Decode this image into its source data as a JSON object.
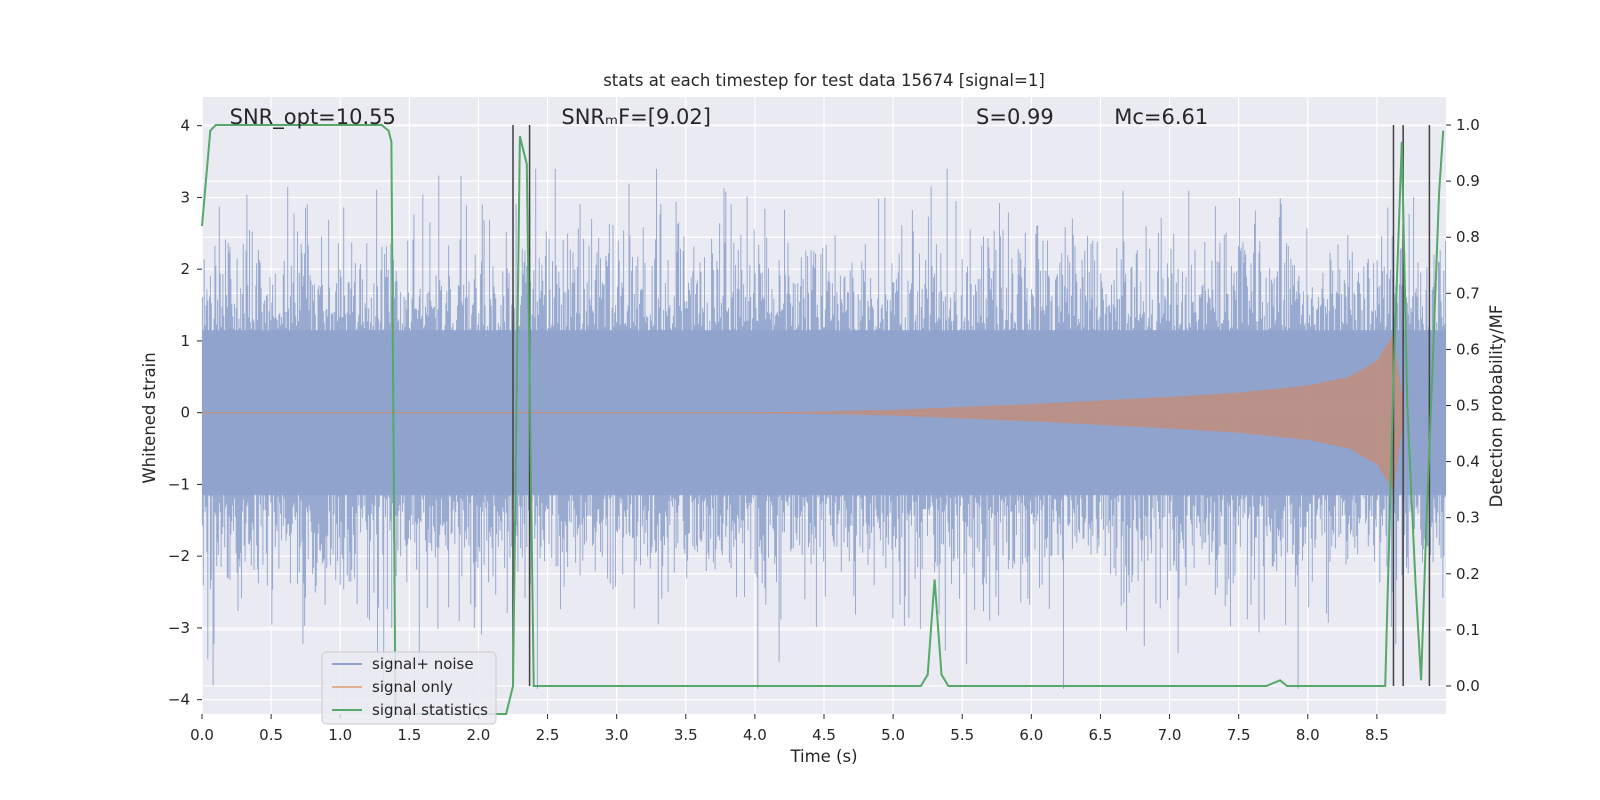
{
  "chart_data": {
    "type": "line",
    "title": "stats at each timestep for test data 15674 [signal=1]",
    "xlabel": "Time (s)",
    "ylabel_left": "Whitened strain",
    "ylabel_right": "Detection probability/MF",
    "xlim": [
      0.0,
      9.0
    ],
    "ylim_left": [
      -4.2,
      4.4
    ],
    "ylim_right": [
      -0.05,
      1.05
    ],
    "x_ticks": [
      "0.0",
      "0.5",
      "1.0",
      "1.5",
      "2.0",
      "2.5",
      "3.0",
      "3.5",
      "4.0",
      "4.5",
      "5.0",
      "5.5",
      "6.0",
      "6.5",
      "7.0",
      "7.5",
      "8.0",
      "8.5"
    ],
    "y_left_ticks": [
      "4",
      "3",
      "2",
      "1",
      "0",
      "−1",
      "−2",
      "−3",
      "−4"
    ],
    "y_right_ticks": [
      "1.0",
      "0.9",
      "0.8",
      "0.7",
      "0.6",
      "0.5",
      "0.4",
      "0.3",
      "0.2",
      "0.1",
      "0.0"
    ],
    "annotations": [
      {
        "text": "SNR_opt=10.55",
        "x": 0.2
      },
      {
        "text": "SNRₘF=[9.02]",
        "x": 2.6
      },
      {
        "text": "S=0.99",
        "x": 5.6
      },
      {
        "text": "Mᴄ=6.61",
        "x": 6.6
      }
    ],
    "legend": {
      "placement": "lower-left",
      "entries": [
        "signal+ noise",
        "signal only",
        "signal statistics"
      ]
    },
    "colors": {
      "noise": "#8fa3cc",
      "signal": "#dd8452",
      "stats": "#55a868",
      "vlines": "#404040",
      "background": "#eaeaf2",
      "grid": "#ffffff"
    },
    "grid": true,
    "series": [
      {
        "name": "signal statistics",
        "axis": "right",
        "x": [
          0.0,
          0.06,
          0.1,
          0.2,
          0.5,
          1.0,
          1.3,
          1.35,
          1.37,
          1.4,
          1.45,
          1.5,
          1.6,
          2.0,
          2.2,
          2.25,
          2.3,
          2.35,
          2.4,
          2.45,
          2.6,
          3.0,
          4.0,
          5.0,
          5.2,
          5.25,
          5.3,
          5.35,
          5.4,
          6.0,
          7.0,
          7.7,
          7.8,
          7.85,
          7.9,
          8.0,
          8.56,
          8.62,
          8.68,
          8.72,
          8.78,
          8.82,
          8.86,
          8.9,
          8.95,
          8.98
        ],
        "y": [
          0.82,
          0.99,
          1.0,
          1.0,
          1.0,
          1.0,
          1.0,
          0.99,
          0.97,
          -0.05,
          -0.05,
          -0.05,
          -0.05,
          -0.05,
          -0.05,
          0.0,
          0.98,
          0.93,
          0.0,
          0.0,
          0.0,
          0.0,
          0.0,
          0.0,
          0.0,
          0.02,
          0.19,
          0.02,
          0.0,
          0.0,
          0.0,
          0.0,
          0.01,
          0.0,
          0.0,
          0.0,
          0.0,
          0.55,
          0.97,
          0.5,
          0.18,
          0.01,
          0.3,
          0.55,
          0.88,
          0.99
        ]
      },
      {
        "name": "signal only",
        "axis": "left",
        "chirp_amplitude": {
          "x": [
            0.0,
            4.0,
            5.0,
            6.0,
            7.0,
            7.5,
            8.0,
            8.3,
            8.5,
            8.62,
            8.7
          ],
          "amp": [
            0.0,
            0.0,
            0.04,
            0.12,
            0.22,
            0.28,
            0.38,
            0.5,
            0.72,
            1.1,
            0.0
          ]
        }
      },
      {
        "name": "signal+ noise",
        "axis": "left",
        "description": "dense Gaussian whitened noise, core band about ±1.5, spikes up to about 3.4 and down to about -3.8"
      }
    ],
    "vertical_lines_x": [
      2.25,
      2.37,
      8.62,
      8.69,
      8.88
    ]
  }
}
